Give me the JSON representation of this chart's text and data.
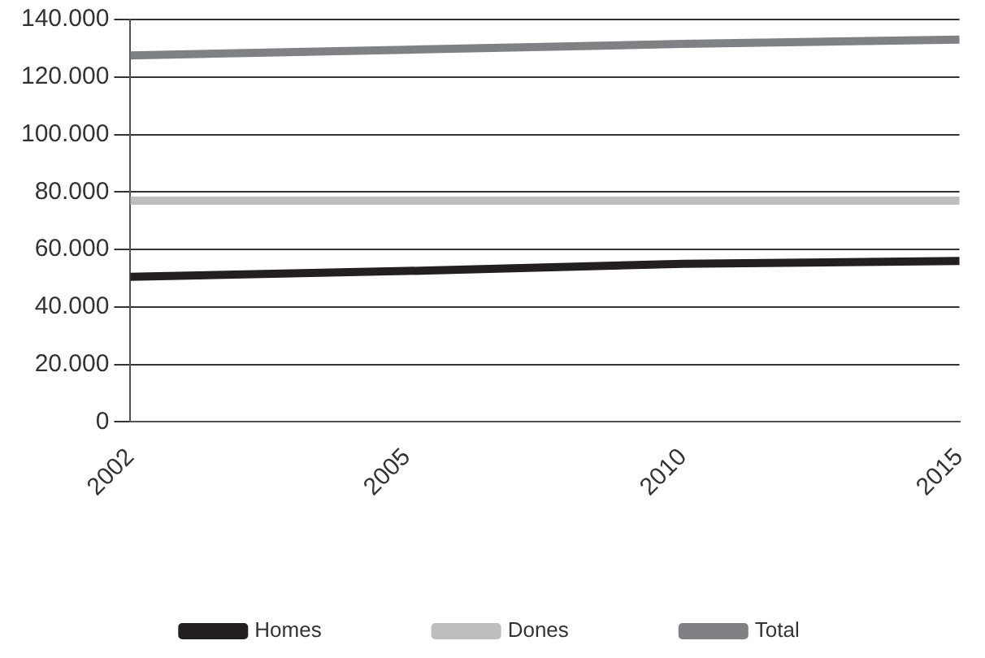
{
  "chart_data": {
    "type": "line",
    "categories": [
      "2002",
      "2005",
      "2010",
      "2015"
    ],
    "series": [
      {
        "name": "Homes",
        "color": "#231f20",
        "values": [
          50500,
          52500,
          55000,
          56000
        ]
      },
      {
        "name": "Dones",
        "color": "#bdbec0",
        "values": [
          77000,
          77000,
          77000,
          77000
        ]
      },
      {
        "name": "Total",
        "color": "#808184",
        "values": [
          127500,
          129500,
          131500,
          133000
        ]
      }
    ],
    "ylim": [
      0,
      140000
    ],
    "yticks": [
      {
        "value": 0,
        "label": "0"
      },
      {
        "value": 20000,
        "label": "20.000"
      },
      {
        "value": 40000,
        "label": "40.000"
      },
      {
        "value": 60000,
        "label": "60.000"
      },
      {
        "value": 80000,
        "label": "80.000"
      },
      {
        "value": 100000,
        "label": "100.000"
      },
      {
        "value": 120000,
        "label": "120.000"
      },
      {
        "value": 140000,
        "label": "140.000"
      }
    ],
    "grid": "y",
    "legend": "bottom",
    "marker": "none",
    "line_style": "solid"
  }
}
